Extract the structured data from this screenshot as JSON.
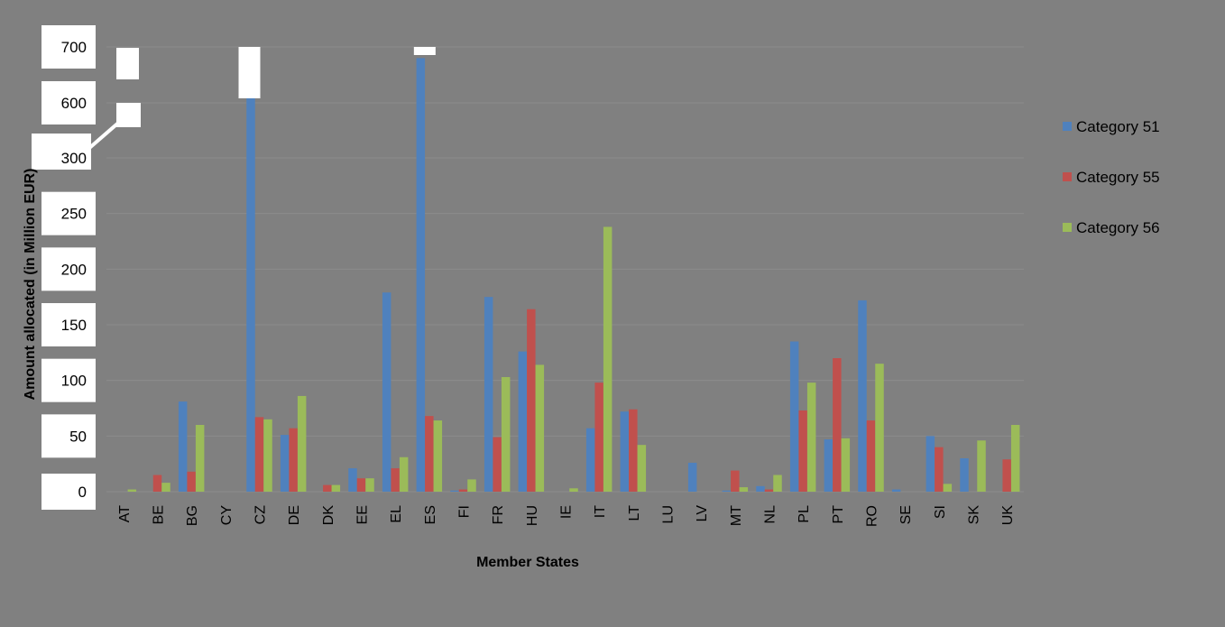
{
  "chart_data": {
    "type": "bar",
    "title": "",
    "xlabel": "Member States",
    "ylabel": "Amount allocated (in Million EUR)",
    "categories": [
      "AT",
      "BE",
      "BG",
      "CY",
      "CZ",
      "DE",
      "DK",
      "EE",
      "EL",
      "ES",
      "FI",
      "FR",
      "HU",
      "IE",
      "IT",
      "LT",
      "LU",
      "LV",
      "MT",
      "NL",
      "PL",
      "PT",
      "RO",
      "SE",
      "SI",
      "SK",
      "UK"
    ],
    "series": [
      {
        "name": "Category 51",
        "color": "#4F81BD",
        "values": [
          0,
          0,
          81,
          0,
          700,
          51,
          0,
          21,
          179,
          680,
          1,
          175,
          126,
          0,
          57,
          72,
          0,
          26,
          1,
          5,
          135,
          47,
          172,
          2,
          50,
          30,
          0
        ]
      },
      {
        "name": "Category 55",
        "color": "#C0504D",
        "values": [
          0,
          15,
          18,
          0,
          67,
          57,
          6,
          12,
          21,
          68,
          2,
          49,
          164,
          0,
          98,
          74,
          0,
          0,
          19,
          2,
          73,
          120,
          64,
          0,
          40,
          0,
          29
        ]
      },
      {
        "name": "Category 56",
        "color": "#9BBB59",
        "values": [
          2,
          8,
          60,
          0,
          65,
          86,
          6,
          12,
          31,
          64,
          11,
          103,
          114,
          3,
          238,
          42,
          0,
          0,
          4,
          15,
          98,
          48,
          115,
          0,
          7,
          46,
          60
        ]
      }
    ],
    "y_ticks_lower": [
      0,
      50,
      100,
      150,
      200,
      250,
      300
    ],
    "y_ticks_upper": [
      600,
      700
    ],
    "axis_break": [
      300,
      600
    ],
    "grid": true,
    "legend_position": "right"
  }
}
